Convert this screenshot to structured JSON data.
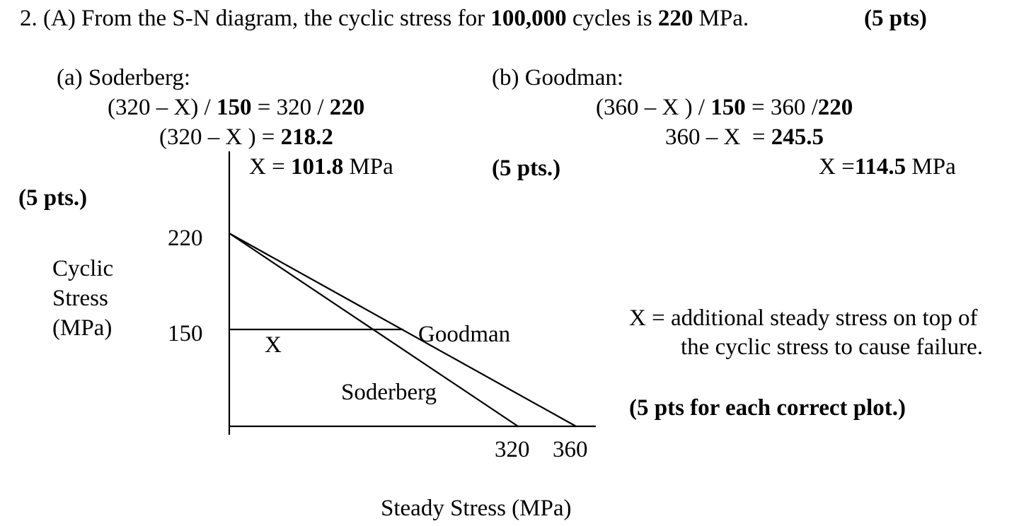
{
  "problem": {
    "number": "2.",
    "part": "(A) From the S-N diagram, the cyclic stress for",
    "cycles": "100,000",
    "cycles_text": "cycles is",
    "stress": "220",
    "stress_unit": "MPa.",
    "points": "(5 pts)"
  },
  "soderberg": {
    "heading": "(a) Soderberg:",
    "eq1_a": "(320 – X) /",
    "eq1_b": "150",
    "eq1_c": "= 320 /",
    "eq1_d": "220",
    "eq2_a": "(320 – X ) =",
    "eq2_b": "218.2",
    "eq3_a": "X =",
    "eq3_b": "101.8",
    "eq3_c": "MPa",
    "points": "(5 pts.)"
  },
  "goodman": {
    "heading": "(b) Goodman:",
    "eq1_a": "(360 – X ) /",
    "eq1_b": "150",
    "eq1_c": "= 360 /",
    "eq1_d": "220",
    "eq2_a": "360 – X  =",
    "eq2_b": "245.5",
    "eq3_a": "X =",
    "eq3_b": "114.5",
    "eq3_c": "MPa",
    "points": "(5 pts.)"
  },
  "diagram": {
    "y_label_1": "Cyclic",
    "y_label_2": "Stress",
    "y_label_3": "(MPa)",
    "y_tick_220": "220",
    "y_tick_150": "150",
    "x_tick_320": "320",
    "x_tick_360": "360",
    "x_label": "Steady Stress (MPa)",
    "label_x": "X",
    "label_goodman": "Goodman",
    "label_soderberg": "Soderberg"
  },
  "notes": {
    "definition_1": "X = additional steady stress on top of",
    "definition_2": "the cyclic stress to cause failure.",
    "plot_points": "(5 pts for each correct plot.)"
  }
}
